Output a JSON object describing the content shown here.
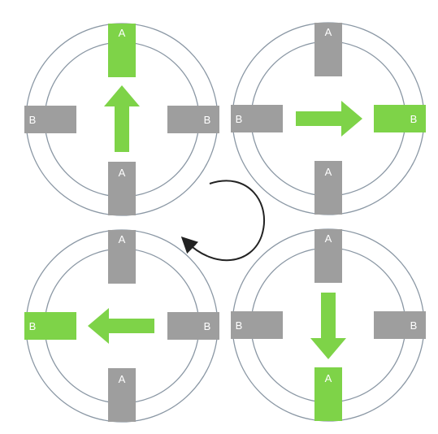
{
  "colors": {
    "background": "#ffffff",
    "ring_stroke": "#8a97a4",
    "pole_inactive": "#9e9e9e",
    "pole_active": "#7ed348",
    "arrow": "#7ed348",
    "rotation_arrow": "#222222",
    "label": "#ffffff"
  },
  "rotation_arrow": {
    "icon": "clockwise-rotation-arrow"
  },
  "panels": [
    {
      "id": "top-left",
      "active_axis": "A",
      "field_arrow": "up",
      "poles": [
        {
          "pos": "top",
          "label": "A",
          "active": true
        },
        {
          "pos": "bottom",
          "label": "A",
          "active": false
        },
        {
          "pos": "left",
          "label": "B",
          "active": false
        },
        {
          "pos": "right",
          "label": "B",
          "active": false
        }
      ]
    },
    {
      "id": "top-right",
      "active_axis": "B",
      "field_arrow": "right",
      "poles": [
        {
          "pos": "top",
          "label": "A",
          "active": false
        },
        {
          "pos": "bottom",
          "label": "A",
          "active": false
        },
        {
          "pos": "left",
          "label": "B",
          "active": false
        },
        {
          "pos": "right",
          "label": "B",
          "active": true
        }
      ]
    },
    {
      "id": "bottom-right",
      "active_axis": "A",
      "field_arrow": "down",
      "poles": [
        {
          "pos": "top",
          "label": "A",
          "active": false
        },
        {
          "pos": "bottom",
          "label": "A",
          "active": true
        },
        {
          "pos": "left",
          "label": "B",
          "active": false
        },
        {
          "pos": "right",
          "label": "B",
          "active": false
        }
      ]
    },
    {
      "id": "bottom-left",
      "active_axis": "B",
      "field_arrow": "left",
      "poles": [
        {
          "pos": "top",
          "label": "A",
          "active": false
        },
        {
          "pos": "bottom",
          "label": "A",
          "active": false
        },
        {
          "pos": "left",
          "label": "B",
          "active": true
        },
        {
          "pos": "right",
          "label": "B",
          "active": false
        }
      ]
    }
  ]
}
